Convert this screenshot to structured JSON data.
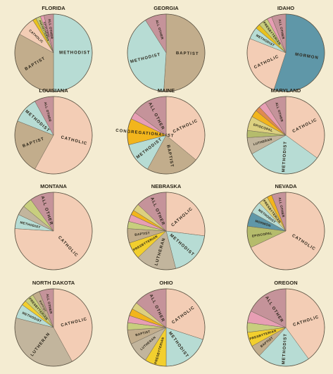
{
  "chart_data": [
    {
      "type": "pie",
      "title": "FLORIDA",
      "slices": [
        {
          "label": "METHODIST",
          "value": 0.5,
          "color": "#b7dcd4"
        },
        {
          "label": "BAPTIST",
          "value": 0.33,
          "color": "#c2ad8c"
        },
        {
          "label": "CATHOLIC",
          "value": 0.08,
          "color": "#f3cdb5"
        },
        {
          "label": "",
          "value": 0.015,
          "color": "#e8c21e"
        },
        {
          "label": "PRESBYTERIAN",
          "value": 0.02,
          "color": "#c8ce7e"
        },
        {
          "label": "EPISCOPAL",
          "value": 0.015,
          "color": "#e79eb4"
        },
        {
          "label": "ALL OTHER",
          "value": 0.04,
          "color": "#c5939a"
        }
      ]
    },
    {
      "type": "pie",
      "title": "GEORGIA",
      "slices": [
        {
          "label": "BAPTIST",
          "value": 0.51,
          "color": "#c2ad8c"
        },
        {
          "label": "METHODIST",
          "value": 0.4,
          "color": "#b7dcd4"
        },
        {
          "label": "ALL OTHER",
          "value": 0.09,
          "color": "#c5939a"
        }
      ]
    },
    {
      "type": "pie",
      "title": "IDAHO",
      "slices": [
        {
          "label": "MORMON",
          "value": 0.55,
          "color": "#5f97a8"
        },
        {
          "label": "CATHOLIC",
          "value": 0.26,
          "color": "#f3cdb5"
        },
        {
          "label": "METHODIST",
          "value": 0.05,
          "color": "#b7dcd4"
        },
        {
          "label": "",
          "value": 0.02,
          "color": "#e8c21e"
        },
        {
          "label": "PRESBYTERIAN",
          "value": 0.04,
          "color": "#c8ce7e"
        },
        {
          "label": "",
          "value": 0.02,
          "color": "#e79eb4"
        },
        {
          "label": "ALL OTHER",
          "value": 0.06,
          "color": "#c5939a"
        }
      ]
    },
    {
      "type": "pie",
      "title": "LOUISIANA",
      "slices": [
        {
          "label": "CATHOLIC",
          "value": 0.58,
          "color": "#f3cdb5"
        },
        {
          "label": "BAPTIST",
          "value": 0.23,
          "color": "#c2ad8c"
        },
        {
          "label": "METHODIST",
          "value": 0.11,
          "color": "#b7dcd4"
        },
        {
          "label": "ALL OTHER",
          "value": 0.08,
          "color": "#c5939a"
        }
      ]
    },
    {
      "type": "pie",
      "title": "MAINE",
      "slices": [
        {
          "label": "CATHOLIC",
          "value": 0.36,
          "color": "#f3cdb5"
        },
        {
          "label": "BAPTIST",
          "value": 0.22,
          "color": "#c2ad8c"
        },
        {
          "label": "METHODIST",
          "value": 0.13,
          "color": "#b7dcd4"
        },
        {
          "label": "CONGREGATIONALIST",
          "value": 0.11,
          "color": "#f2b51c"
        },
        {
          "label": "",
          "value": 0.03,
          "color": "#e79eb4"
        },
        {
          "label": "ALL OTHER",
          "value": 0.15,
          "color": "#c5939a"
        }
      ]
    },
    {
      "type": "pie",
      "title": "MARYLAND",
      "slices": [
        {
          "label": "CATHOLIC",
          "value": 0.35,
          "color": "#f3cdb5"
        },
        {
          "label": "METHODIST",
          "value": 0.32,
          "color": "#b7dcd4"
        },
        {
          "label": "LUTHERAN",
          "value": 0.07,
          "color": "#c2b59d"
        },
        {
          "label": "",
          "value": 0.03,
          "color": "#b5bc6c"
        },
        {
          "label": "EPISCOPAL",
          "value": 0.06,
          "color": "#dcd080"
        },
        {
          "label": "",
          "value": 0.03,
          "color": "#f2b51c"
        },
        {
          "label": "",
          "value": 0.02,
          "color": "#e08a50"
        },
        {
          "label": "",
          "value": 0.03,
          "color": "#e79eb4"
        },
        {
          "label": "ALL OTHER",
          "value": 0.09,
          "color": "#c5939a"
        }
      ]
    },
    {
      "type": "pie",
      "title": "MONTANA",
      "slices": [
        {
          "label": "CATHOLIC",
          "value": 0.76,
          "color": "#f3cdb5"
        },
        {
          "label": "METHODIST",
          "value": 0.06,
          "color": "#b7dcd4"
        },
        {
          "label": "",
          "value": 0.04,
          "color": "#c2b59d"
        },
        {
          "label": "",
          "value": 0.04,
          "color": "#c8ce7e"
        },
        {
          "label": "ALL OTHER",
          "value": 0.1,
          "color": "#c5939a"
        }
      ]
    },
    {
      "type": "pie",
      "title": "NEBRASKA",
      "slices": [
        {
          "label": "CATHOLIC",
          "value": 0.27,
          "color": "#f3cdb5"
        },
        {
          "label": "METHODIST",
          "value": 0.19,
          "color": "#b7dcd4"
        },
        {
          "label": "LUTHERAN",
          "value": 0.17,
          "color": "#c2b59d"
        },
        {
          "label": "PRESBYTERIAN",
          "value": 0.07,
          "color": "#f2cf2e"
        },
        {
          "label": "BAPTIST",
          "value": 0.06,
          "color": "#c2ad8c"
        },
        {
          "label": "",
          "value": 0.03,
          "color": "#c8ce7e"
        },
        {
          "label": "",
          "value": 0.03,
          "color": "#e79eb4"
        },
        {
          "label": "",
          "value": 0.02,
          "color": "#f2b51c"
        },
        {
          "label": "",
          "value": 0.03,
          "color": "#dcd080"
        },
        {
          "label": "ALL OTHER",
          "value": 0.13,
          "color": "#c5939a"
        }
      ]
    },
    {
      "type": "pie",
      "title": "NEVADA",
      "slices": [
        {
          "label": "CATHOLIC",
          "value": 0.68,
          "color": "#f3cdb5"
        },
        {
          "label": "EPISCOPAL",
          "value": 0.09,
          "color": "#b5bc6c"
        },
        {
          "label": "MORMON",
          "value": 0.06,
          "color": "#5f97a8"
        },
        {
          "label": "METHODIST",
          "value": 0.05,
          "color": "#b7dcd4"
        },
        {
          "label": "PRESBYTERIAN",
          "value": 0.04,
          "color": "#dcd080"
        },
        {
          "label": "",
          "value": 0.02,
          "color": "#f2b51c"
        },
        {
          "label": "ALL OTHER",
          "value": 0.06,
          "color": "#c5939a"
        }
      ]
    },
    {
      "type": "pie",
      "title": "NORTH DAKOTA",
      "slices": [
        {
          "label": "CATHOLIC",
          "value": 0.42,
          "color": "#f3cdb5"
        },
        {
          "label": "LUTHERAN",
          "value": 0.37,
          "color": "#c2b59d"
        },
        {
          "label": "METHODIST",
          "value": 0.06,
          "color": "#b7dcd4"
        },
        {
          "label": "",
          "value": 0.02,
          "color": "#f2cf2e"
        },
        {
          "label": "PRESBYTERIAN",
          "value": 0.04,
          "color": "#c8ce7e"
        },
        {
          "label": "BAPTIST",
          "value": 0.03,
          "color": "#c2ad8c"
        },
        {
          "label": "ALL OTHER",
          "value": 0.06,
          "color": "#c5939a"
        }
      ]
    },
    {
      "type": "pie",
      "title": "OHIO",
      "slices": [
        {
          "label": "CATHOLIC",
          "value": 0.3,
          "color": "#f3cdb5"
        },
        {
          "label": "METHODIST",
          "value": 0.2,
          "color": "#b7dcd4"
        },
        {
          "label": "PRESBYTERIAN",
          "value": 0.09,
          "color": "#f2cf2e"
        },
        {
          "label": "LUTHERAN",
          "value": 0.09,
          "color": "#c2b59d"
        },
        {
          "label": "BAPTIST",
          "value": 0.06,
          "color": "#c2ad8c"
        },
        {
          "label": "",
          "value": 0.03,
          "color": "#c8ce7e"
        },
        {
          "label": "",
          "value": 0.03,
          "color": "#e79eb4"
        },
        {
          "label": "",
          "value": 0.03,
          "color": "#f2b51c"
        },
        {
          "label": "",
          "value": 0.03,
          "color": "#dcd080"
        },
        {
          "label": "ALL OTHER",
          "value": 0.14,
          "color": "#c5939a"
        }
      ]
    },
    {
      "type": "pie",
      "title": "OREGON",
      "slices": [
        {
          "label": "CATHOLIC",
          "value": 0.4,
          "color": "#f3cdb5"
        },
        {
          "label": "METHODIST",
          "value": 0.22,
          "color": "#b7dcd4"
        },
        {
          "label": "BAPTIST",
          "value": 0.05,
          "color": "#c2ad8c"
        },
        {
          "label": "PRESBYTERIAN",
          "value": 0.06,
          "color": "#f2cf2e"
        },
        {
          "label": "",
          "value": 0.04,
          "color": "#c8ce7e"
        },
        {
          "label": "",
          "value": 0.05,
          "color": "#e79eb4"
        },
        {
          "label": "ALL OTHER",
          "value": 0.18,
          "color": "#c5939a"
        }
      ]
    }
  ]
}
